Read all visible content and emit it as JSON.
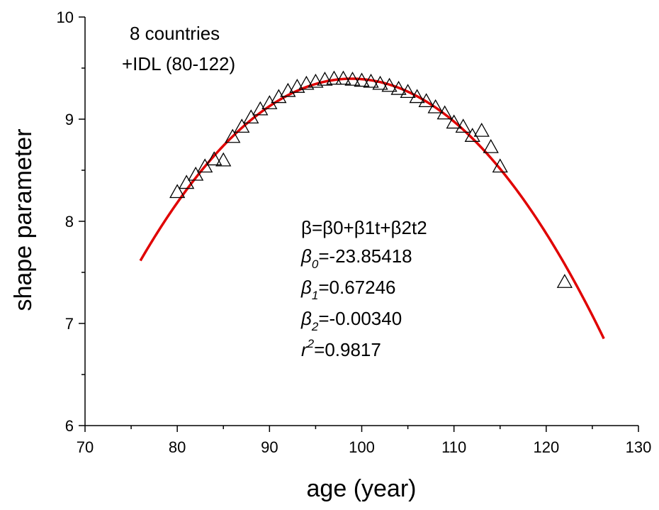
{
  "chart_data": {
    "type": "scatter",
    "xlabel": "age (year)",
    "ylabel": "shape parameter",
    "xlim": [
      70,
      130
    ],
    "ylim": [
      6,
      10
    ],
    "xticks": [
      70,
      80,
      90,
      100,
      110,
      120,
      130
    ],
    "yticks": [
      6,
      7,
      8,
      9,
      10
    ],
    "grid": false,
    "annotation": {
      "line1": "8 countries",
      "line2": "+IDL (80-122)"
    },
    "formula": {
      "model": "β=β0+β1t+β2t2",
      "b0_label": "=-23.85418",
      "b1_label": "=0.67246",
      "b2_label": "=-0.00340",
      "r2_label": "=0.9817"
    },
    "series": [
      {
        "marker": "open-triangle",
        "color": "#000000",
        "points": [
          [
            80,
            8.28
          ],
          [
            81,
            8.37
          ],
          [
            82,
            8.45
          ],
          [
            83,
            8.53
          ],
          [
            84,
            8.6
          ],
          [
            85,
            8.59
          ],
          [
            86,
            8.82
          ],
          [
            87,
            8.92
          ],
          [
            88,
            9.01
          ],
          [
            89,
            9.09
          ],
          [
            90,
            9.15
          ],
          [
            91,
            9.21
          ],
          [
            92,
            9.27
          ],
          [
            93,
            9.31
          ],
          [
            94,
            9.34
          ],
          [
            95,
            9.36
          ],
          [
            96,
            9.38
          ],
          [
            97,
            9.39
          ],
          [
            98,
            9.39
          ],
          [
            99,
            9.38
          ],
          [
            100,
            9.37
          ],
          [
            101,
            9.36
          ],
          [
            102,
            9.34
          ],
          [
            103,
            9.32
          ],
          [
            104,
            9.29
          ],
          [
            105,
            9.26
          ],
          [
            106,
            9.21
          ],
          [
            107,
            9.17
          ],
          [
            108,
            9.11
          ],
          [
            109,
            9.05
          ],
          [
            110,
            8.96
          ],
          [
            111,
            8.92
          ],
          [
            112,
            8.83
          ],
          [
            113,
            8.88
          ],
          [
            114,
            8.72
          ],
          [
            115,
            8.53
          ],
          [
            122,
            7.4
          ]
        ]
      },
      {
        "type": "line",
        "color": "#e00000",
        "coefficients": {
          "b0": -23.85418,
          "b1": 0.67246,
          "b2": -0.0034
        },
        "x_range": [
          76,
          126.3
        ]
      }
    ]
  }
}
